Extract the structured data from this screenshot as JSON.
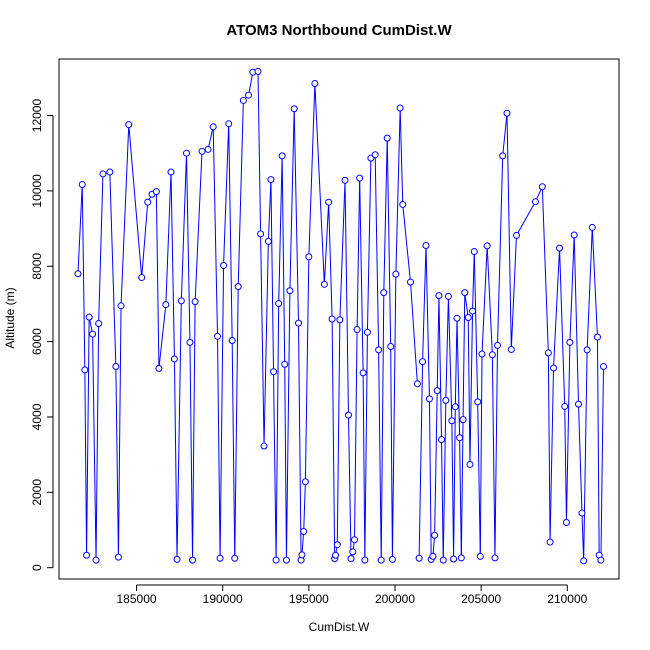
{
  "chart_data": {
    "type": "line",
    "title": "ATOM3 Northbound CumDist.W",
    "xlabel": "CumDist.W",
    "ylabel": "Altitude (m)",
    "xlim": [
      180500,
      213000
    ],
    "ylim": [
      -300,
      13500
    ],
    "x_ticks": [
      185000,
      190000,
      195000,
      200000,
      205000,
      210000
    ],
    "y_ticks": [
      0,
      2000,
      4000,
      6000,
      8000,
      10000,
      12000
    ],
    "grid": false,
    "color": "#0000ff",
    "series": [
      {
        "style": "line+points",
        "points": [
          [
            181600,
            7800
          ],
          [
            181850,
            10170
          ],
          [
            182000,
            5250
          ],
          [
            182100,
            330
          ],
          [
            182250,
            6650
          ],
          [
            182450,
            6200
          ],
          [
            182650,
            200
          ],
          [
            182800,
            6480
          ],
          [
            183050,
            10450
          ],
          [
            183450,
            10500
          ],
          [
            183800,
            5340
          ],
          [
            183950,
            280
          ],
          [
            184100,
            6950
          ],
          [
            184550,
            11760
          ],
          [
            185300,
            7700
          ],
          [
            185650,
            9700
          ],
          [
            185900,
            9910
          ],
          [
            186150,
            9980
          ],
          [
            186300,
            5290
          ],
          [
            186700,
            6980
          ],
          [
            187000,
            10500
          ],
          [
            187200,
            5540
          ],
          [
            187350,
            220
          ],
          [
            187600,
            7080
          ],
          [
            187900,
            11000
          ],
          [
            188100,
            5980
          ],
          [
            188250,
            200
          ],
          [
            188400,
            7060
          ],
          [
            188800,
            11050
          ],
          [
            189150,
            11100
          ],
          [
            189450,
            11700
          ],
          [
            189700,
            6140
          ],
          [
            189850,
            250
          ],
          [
            190050,
            8020
          ],
          [
            190350,
            11780
          ],
          [
            190550,
            6030
          ],
          [
            190700,
            250
          ],
          [
            190900,
            7460
          ],
          [
            191200,
            12400
          ],
          [
            191500,
            12540
          ],
          [
            191750,
            13150
          ],
          [
            192050,
            13170
          ],
          [
            192200,
            8860
          ],
          [
            192400,
            3230
          ],
          [
            192650,
            8660
          ],
          [
            192800,
            10300
          ],
          [
            192950,
            5200
          ],
          [
            193100,
            200
          ],
          [
            193250,
            7010
          ],
          [
            193450,
            10930
          ],
          [
            193600,
            5400
          ],
          [
            193700,
            200
          ],
          [
            193900,
            7350
          ],
          [
            194150,
            12180
          ],
          [
            194400,
            6490
          ],
          [
            194550,
            200
          ],
          [
            194600,
            340
          ],
          [
            194700,
            960
          ],
          [
            194800,
            2280
          ],
          [
            195000,
            8250
          ],
          [
            195350,
            12850
          ],
          [
            195900,
            7520
          ],
          [
            196150,
            9700
          ],
          [
            196350,
            6600
          ],
          [
            196500,
            240
          ],
          [
            196550,
            330
          ],
          [
            196650,
            610
          ],
          [
            196800,
            6580
          ],
          [
            197100,
            10280
          ],
          [
            197300,
            4050
          ],
          [
            197450,
            240
          ],
          [
            197550,
            420
          ],
          [
            197650,
            740
          ],
          [
            197800,
            6320
          ],
          [
            197950,
            10340
          ],
          [
            198150,
            5170
          ],
          [
            198250,
            200
          ],
          [
            198400,
            6250
          ],
          [
            198600,
            10870
          ],
          [
            198850,
            10960
          ],
          [
            199050,
            5780
          ],
          [
            199200,
            200
          ],
          [
            199350,
            7300
          ],
          [
            199550,
            11400
          ],
          [
            199750,
            5870
          ],
          [
            199850,
            220
          ],
          [
            200050,
            7790
          ],
          [
            200300,
            12200
          ],
          [
            200450,
            9640
          ],
          [
            200900,
            7580
          ],
          [
            201300,
            4880
          ],
          [
            201400,
            250
          ],
          [
            201600,
            5470
          ],
          [
            201800,
            8550
          ],
          [
            202000,
            4480
          ],
          [
            202100,
            220
          ],
          [
            202200,
            300
          ],
          [
            202300,
            860
          ],
          [
            202450,
            4700
          ],
          [
            202550,
            7220
          ],
          [
            202700,
            3400
          ],
          [
            202800,
            200
          ],
          [
            202950,
            4440
          ],
          [
            203100,
            7200
          ],
          [
            203300,
            3900
          ],
          [
            203400,
            230
          ],
          [
            203500,
            4270
          ],
          [
            203600,
            6620
          ],
          [
            203750,
            3450
          ],
          [
            203850,
            260
          ],
          [
            203950,
            3930
          ],
          [
            204050,
            7300
          ],
          [
            204250,
            6640
          ],
          [
            204350,
            2740
          ],
          [
            204500,
            6810
          ],
          [
            204600,
            8390
          ],
          [
            204800,
            4400
          ],
          [
            204950,
            300
          ],
          [
            205050,
            5670
          ],
          [
            205350,
            8540
          ],
          [
            205650,
            5650
          ],
          [
            205800,
            260
          ],
          [
            205950,
            5900
          ],
          [
            206250,
            10930
          ],
          [
            206500,
            12060
          ],
          [
            206750,
            5790
          ],
          [
            207050,
            8820
          ],
          [
            208150,
            9710
          ],
          [
            208550,
            10110
          ],
          [
            208900,
            5700
          ],
          [
            209000,
            680
          ],
          [
            209200,
            5300
          ],
          [
            209550,
            8480
          ],
          [
            209850,
            4280
          ],
          [
            209950,
            1200
          ],
          [
            210150,
            5980
          ],
          [
            210400,
            8830
          ],
          [
            210650,
            4340
          ],
          [
            210850,
            1450
          ],
          [
            210950,
            180
          ],
          [
            211150,
            5780
          ],
          [
            211450,
            9030
          ],
          [
            211750,
            6120
          ],
          [
            211850,
            330
          ],
          [
            211950,
            200
          ],
          [
            212100,
            5340
          ]
        ],
        "gaps_after_x": [
          201300
        ]
      }
    ]
  }
}
